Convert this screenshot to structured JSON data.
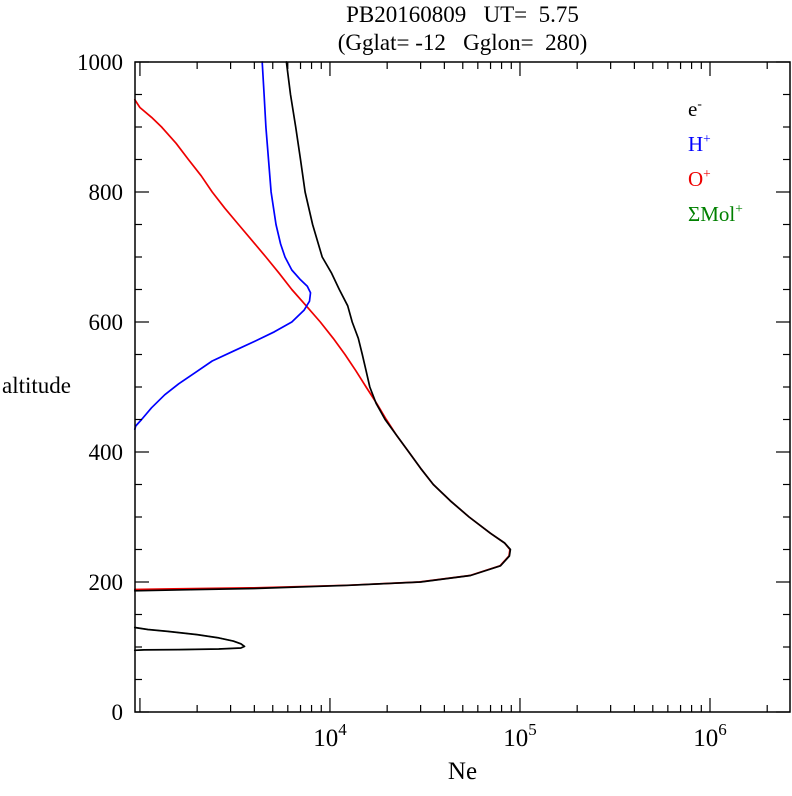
{
  "chart_data": {
    "type": "line",
    "title": "PB20160809   UT=  5.75",
    "subtitle": "(Gglat= -12   Gglon=  280)",
    "xlabel": "Ne",
    "ylabel": "altitude",
    "x_axis": {
      "scale": "log",
      "min_log": 2.974,
      "max_log": 6.421,
      "major_decades": [
        3,
        4,
        5,
        6
      ],
      "labeled_ticks": [
        {
          "base": "10",
          "exp": "4",
          "log": 4
        },
        {
          "base": "10",
          "exp": "5",
          "log": 5
        },
        {
          "base": "10",
          "exp": "6",
          "log": 6
        }
      ]
    },
    "y_axis": {
      "min": 0,
      "max": 1000,
      "major_step": 200,
      "minor_step": 50,
      "tick_labels": [
        "0",
        "200",
        "400",
        "600",
        "800",
        "1000"
      ]
    },
    "legend": [
      {
        "id": "electron",
        "base": "e",
        "sup": "-",
        "color": "#000000"
      },
      {
        "id": "h-plus",
        "base": "H",
        "sup": "+",
        "color": "#0000ff"
      },
      {
        "id": "o-plus",
        "base": "O",
        "sup": "+",
        "color": "#ee0000"
      },
      {
        "id": "mol-plus",
        "base": "ΣMol",
        "sup": "+",
        "color": "#008000"
      }
    ],
    "series": [
      {
        "id": "mol-plus",
        "color": "#008000",
        "width": 1.3,
        "segments": [
          [
            [
              940,
              130
            ],
            [
              1100,
              127
            ],
            [
              1400,
              124
            ],
            [
              2000,
              119
            ],
            [
              2600,
              114
            ],
            [
              3100,
              109
            ],
            [
              3400,
              105
            ],
            [
              3550,
              101
            ],
            [
              3400,
              98.5
            ],
            [
              2600,
              97
            ],
            [
              1600,
              96
            ],
            [
              1050,
              95.5
            ],
            [
              940,
              95
            ]
          ]
        ]
      },
      {
        "id": "o-plus",
        "color": "#ee0000",
        "width": 1.7,
        "segments": [
          [
            [
              940,
              942
            ],
            [
              1000,
              930
            ],
            [
              1150,
              915
            ],
            [
              1300,
              900
            ],
            [
              1550,
              875
            ],
            [
              1800,
              850
            ],
            [
              2100,
              825
            ],
            [
              2400,
              800
            ],
            [
              2800,
              775
            ],
            [
              3300,
              750
            ],
            [
              3900,
              725
            ],
            [
              4600,
              700
            ],
            [
              5400,
              675
            ],
            [
              6300,
              650
            ],
            [
              7500,
              625
            ],
            [
              8900,
              600
            ],
            [
              10400,
              575
            ],
            [
              12000,
              550
            ],
            [
              13700,
              525
            ],
            [
              15500,
              500
            ],
            [
              17600,
              475
            ],
            [
              19800,
              450
            ],
            [
              22500,
              425
            ],
            [
              26000,
              400
            ],
            [
              30000,
              375
            ],
            [
              35000,
              350
            ],
            [
              43000,
              325
            ],
            [
              54000,
              300
            ],
            [
              70000,
              275
            ],
            [
              83000,
              260
            ],
            [
              88500,
              250
            ],
            [
              87500,
              240
            ],
            [
              78500,
              225
            ],
            [
              54500,
              210
            ],
            [
              29500,
              200
            ],
            [
              12200,
              195
            ],
            [
              3800,
              191
            ],
            [
              1500,
              189.5
            ],
            [
              940,
              188.5
            ]
          ]
        ]
      },
      {
        "id": "h-plus",
        "color": "#0000ff",
        "width": 1.7,
        "segments": [
          [
            [
              4400,
              1000
            ],
            [
              4500,
              950
            ],
            [
              4600,
              900
            ],
            [
              4750,
              850
            ],
            [
              4900,
              800
            ],
            [
              5200,
              750
            ],
            [
              5500,
              720
            ],
            [
              5800,
              700
            ],
            [
              6300,
              680
            ],
            [
              7000,
              665
            ],
            [
              7600,
              655
            ],
            [
              7900,
              645
            ],
            [
              7800,
              632
            ],
            [
              7300,
              618
            ],
            [
              6300,
              600
            ],
            [
              5100,
              585
            ],
            [
              4000,
              570
            ],
            [
              3100,
              555
            ],
            [
              2400,
              540
            ],
            [
              1950,
              522
            ],
            [
              1600,
              505
            ],
            [
              1350,
              488
            ],
            [
              1150,
              468
            ],
            [
              1020,
              450
            ],
            [
              950,
              440
            ],
            [
              940,
              435
            ]
          ]
        ]
      },
      {
        "id": "electron",
        "color": "#000000",
        "width": 1.7,
        "segments": [
          [
            [
              5900,
              1000
            ],
            [
              6200,
              950
            ],
            [
              6600,
              900
            ],
            [
              7000,
              850
            ],
            [
              7400,
              800
            ],
            [
              8100,
              750
            ],
            [
              9100,
              700
            ],
            [
              10200,
              675
            ],
            [
              11200,
              650
            ],
            [
              12400,
              625
            ],
            [
              13100,
              600
            ],
            [
              14100,
              575
            ],
            [
              14800,
              550
            ],
            [
              15500,
              525
            ],
            [
              16200,
              500
            ],
            [
              17500,
              475
            ],
            [
              19500,
              450
            ],
            [
              22500,
              425
            ],
            [
              26000,
              400
            ],
            [
              30000,
              375
            ],
            [
              35000,
              350
            ],
            [
              43000,
              325
            ],
            [
              54000,
              300
            ],
            [
              70000,
              275
            ],
            [
              83000,
              260
            ],
            [
              89000,
              250
            ],
            [
              88000,
              240
            ],
            [
              79000,
              225
            ],
            [
              55000,
              210
            ],
            [
              30000,
              200
            ],
            [
              12600,
              195
            ],
            [
              4000,
              190
            ],
            [
              1700,
              188
            ],
            [
              940,
              186.5
            ]
          ],
          [
            [
              940,
              130
            ],
            [
              1100,
              127
            ],
            [
              1400,
              124
            ],
            [
              2000,
              119
            ],
            [
              2600,
              114
            ],
            [
              3100,
              109
            ],
            [
              3400,
              105
            ],
            [
              3550,
              101
            ],
            [
              3400,
              98.5
            ],
            [
              2600,
              97
            ],
            [
              1600,
              96
            ],
            [
              1050,
              95.5
            ],
            [
              940,
              95
            ]
          ]
        ]
      }
    ]
  }
}
